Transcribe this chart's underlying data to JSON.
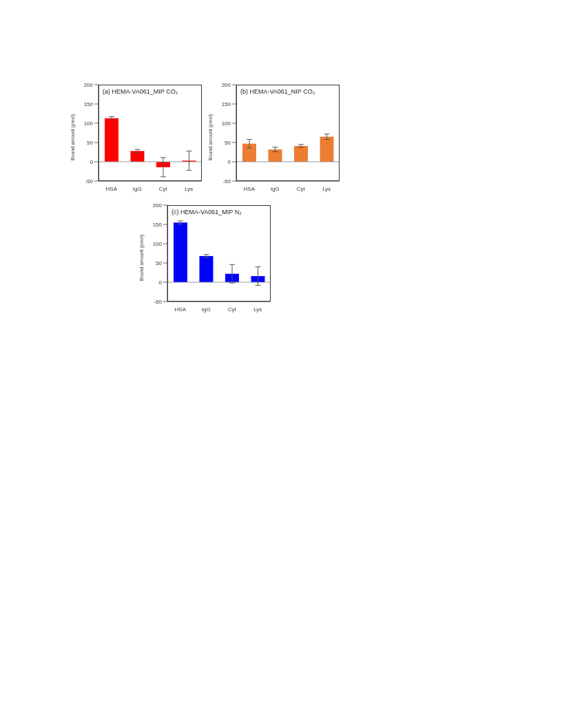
{
  "chart_data": [
    {
      "type": "bar",
      "title": "(a) HEMA-VA061_MIP CO₂",
      "ylabel": "Bound amount (pmol)",
      "categories": [
        "HSA",
        "IgG",
        "Cyt",
        "Lys"
      ],
      "values": [
        113,
        28,
        -14,
        3
      ],
      "errors": [
        4,
        4,
        25,
        25
      ],
      "color": "#ff0000",
      "ylim": [
        -50,
        200
      ],
      "yticks": [
        -50,
        0,
        50,
        100,
        150,
        200
      ],
      "ref_lines": [
        {
          "axis": "y",
          "value": 0,
          "color": "#999999"
        }
      ],
      "grid": false,
      "legend": false
    },
    {
      "type": "bar",
      "title": "(b) HEMA-VA061_NIP CO₂",
      "ylabel": "Bound amount (pmol)",
      "categories": [
        "HSA",
        "IgG",
        "Cyt",
        "Lys"
      ],
      "values": [
        47,
        32,
        41,
        65
      ],
      "errors": [
        11,
        6,
        4,
        7
      ],
      "color": "#ed7d31",
      "ylim": [
        -50,
        200
      ],
      "yticks": [
        -50,
        0,
        50,
        100,
        150,
        200
      ],
      "ref_lines": [
        {
          "axis": "y",
          "value": 0,
          "color": "#999999"
        }
      ],
      "grid": false,
      "legend": false
    },
    {
      "type": "bar",
      "title": "(c) HEMA-VA061_MIP N₂",
      "ylabel": "Bound amount (pmol)",
      "categories": [
        "HSA",
        "IgG",
        "Cyt",
        "Lys"
      ],
      "values": [
        155,
        68,
        22,
        16
      ],
      "errors": [
        4,
        4,
        24,
        24
      ],
      "color": "#0000ff",
      "ylim": [
        -50,
        200
      ],
      "yticks": [
        -50,
        0,
        50,
        100,
        150,
        200
      ],
      "ref_lines": [
        {
          "axis": "y",
          "value": 0,
          "color": "#999999"
        }
      ],
      "grid": false,
      "legend": false
    }
  ]
}
